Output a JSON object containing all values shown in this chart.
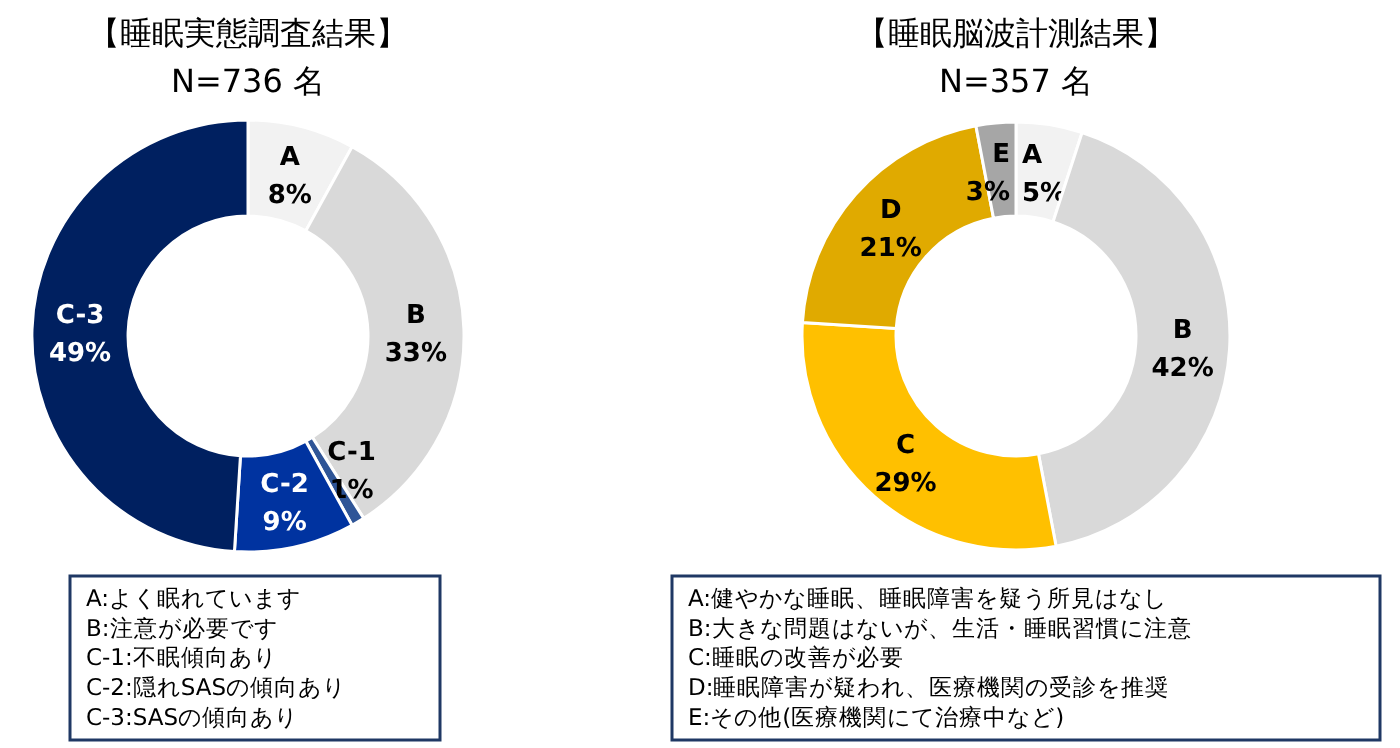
{
  "chart_data": [
    {
      "type": "donut",
      "title": "【睡眠実態調査結果】",
      "subtitle": "N=736 名",
      "categories": [
        "A",
        "B",
        "C-1",
        "C-2",
        "C-3"
      ],
      "values": [
        8,
        33,
        1,
        9,
        49
      ],
      "colors": [
        "#f2f2f2",
        "#d9d9d9",
        "#2f5597",
        "#0033a0",
        "#002060"
      ],
      "value_labels": [
        "8%",
        "33%",
        "1%",
        "9%",
        "49%"
      ],
      "annotations": [
        "A:よく眠れています",
        "B:注意が必要です",
        "C-1:不眠傾向あり",
        "C-2:隠れSASの傾向あり",
        "C-3:SASの傾向あり"
      ]
    },
    {
      "type": "donut",
      "title": "【睡眠脳波計測結果】",
      "subtitle": "N=357 名",
      "categories": [
        "A",
        "B",
        "C",
        "D",
        "E"
      ],
      "values": [
        5,
        42,
        29,
        21,
        3
      ],
      "colors": [
        "#f2f2f2",
        "#d9d9d9",
        "#ffc000",
        "#e0aa00",
        "#a6a6a6"
      ],
      "value_labels": [
        "5%",
        "42%",
        "29%",
        "21%",
        "3%"
      ],
      "annotations": [
        "A:健やかな睡眠、睡眠障害を疑う所見はなし",
        "B:大きな問題はないが、生活・睡眠習慣に注意",
        "C:睡眠の改善が必要",
        "D:睡眠障害が疑われ、医療機関の受診を推奨",
        "E:その他(医療機関にて治療中など)"
      ]
    }
  ]
}
